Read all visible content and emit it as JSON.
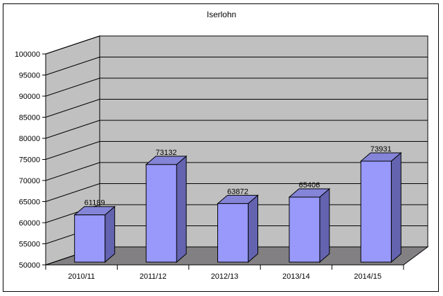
{
  "window": {
    "background": "#ffffff",
    "border_color": "#000000"
  },
  "chart_data": {
    "type": "bar",
    "projection": "3d",
    "title": "Iserlohn",
    "categories": [
      "2010/11",
      "2011/12",
      "2012/13",
      "2013/14",
      "2014/15"
    ],
    "values": [
      61189,
      73132,
      63872,
      65406,
      73931
    ],
    "data_labels": [
      "61189",
      "73132",
      "63872",
      "65406",
      "73931"
    ],
    "xlabel": "",
    "ylabel": "",
    "ylim": [
      50000,
      100000
    ],
    "ytick_step": 5000,
    "ytick_labels": [
      "50000",
      "55000",
      "60000",
      "65000",
      "70000",
      "75000",
      "80000",
      "85000",
      "90000",
      "95000",
      "100000"
    ],
    "grid": true,
    "legend": "none",
    "colors": {
      "bar_front": "#9999fc",
      "bar_top": "#8484d8",
      "bar_side": "#6363b0",
      "wall": "#c0c0c0",
      "floor": "#828082",
      "line": "#000000",
      "text": "#000000"
    }
  }
}
